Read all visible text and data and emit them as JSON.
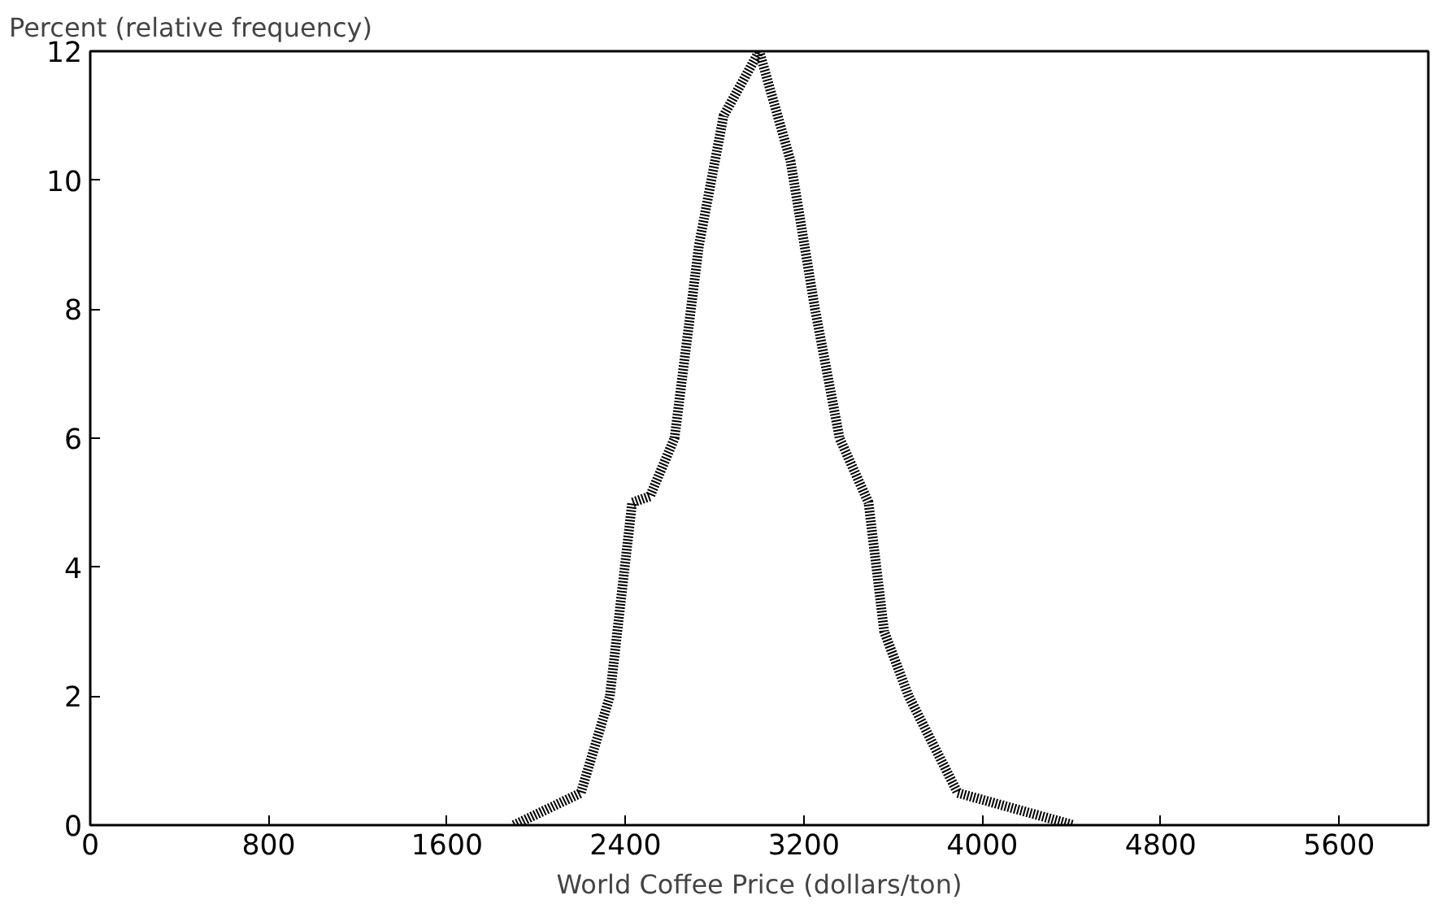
{
  "chart_data": {
    "type": "line",
    "xlabel": "World Coffee Price (dollars/ton)",
    "ylabel": "Percent (relative frequency)",
    "x": [
      1900,
      2200,
      2330,
      2430,
      2510,
      2620,
      2730,
      2840,
      3000,
      3140,
      3250,
      3360,
      3490,
      3560,
      3670,
      3890,
      4410
    ],
    "series": [
      {
        "color": "#000000",
        "values": [
          0,
          0.5,
          2,
          5,
          5.1,
          6,
          9,
          11,
          12,
          10.3,
          8,
          6,
          5,
          3,
          2,
          0.5,
          0
        ]
      }
    ],
    "xlim": [
      0,
      6000
    ],
    "ylim": [
      0,
      12
    ],
    "xticks": [
      0,
      800,
      1600,
      2400,
      3200,
      4000,
      4800,
      5600
    ],
    "yticks": [
      0,
      2,
      4,
      6,
      8,
      10,
      12
    ],
    "grid": false,
    "line_style": "dotted"
  }
}
